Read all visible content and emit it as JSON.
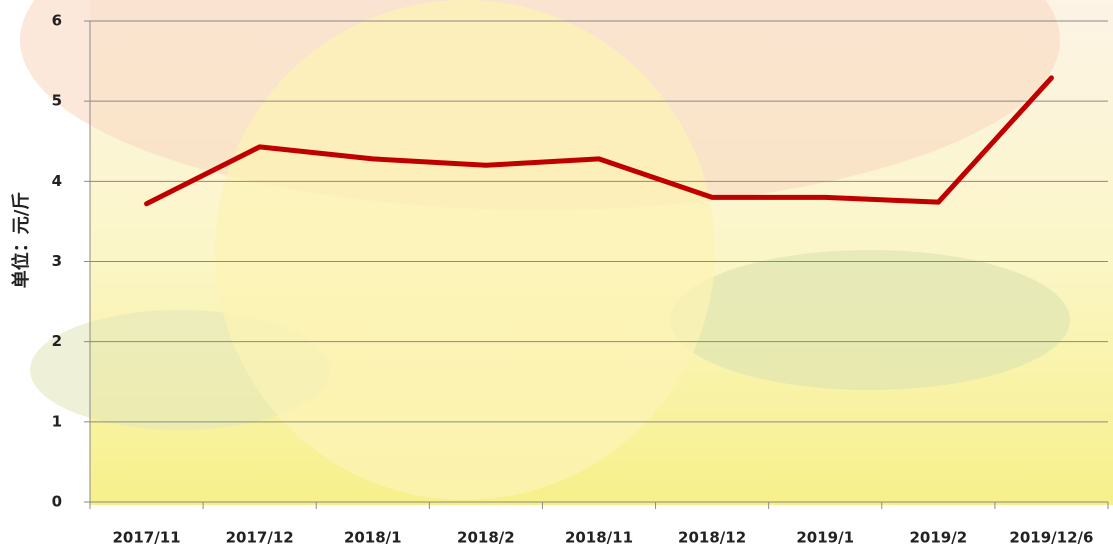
{
  "chart_data": {
    "type": "line",
    "y_label": "单位：元/斤",
    "categories": [
      "2017/11",
      "2017/12",
      "2018/1",
      "2018/2",
      "2018/11",
      "2018/12",
      "2019/1",
      "2019/2",
      "2019/12/6"
    ],
    "values": [
      3.72,
      4.43,
      4.28,
      4.2,
      4.28,
      3.8,
      3.8,
      3.74,
      5.29
    ],
    "color": "#c00000",
    "ylim": [
      0,
      6
    ],
    "yticks": [
      0,
      1,
      2,
      3,
      4,
      5,
      6
    ],
    "grid": true
  }
}
